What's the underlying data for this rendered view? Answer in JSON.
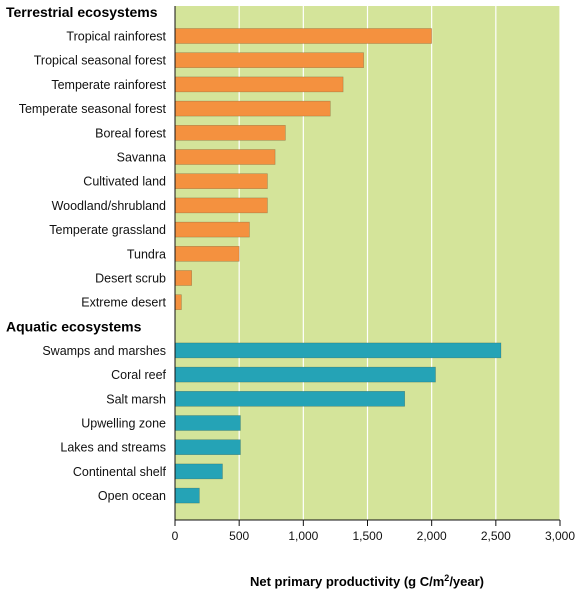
{
  "chart_data": {
    "type": "bar",
    "orientation": "horizontal",
    "xlabel": "Net primary productivity (g C/m²/year)",
    "xlim": [
      0,
      3000
    ],
    "xticks": [
      0,
      500,
      1000,
      1500,
      2000,
      2500,
      3000
    ],
    "xtick_labels": [
      "0",
      "500",
      "1,000",
      "1,500",
      "2,000",
      "2,500",
      "3,000"
    ],
    "grid": "vertical",
    "background_color": "#d4e49a",
    "groups": [
      {
        "name": "Terrestrial ecosystems",
        "color": "#f4913f",
        "categories": [
          "Tropical rainforest",
          "Tropical seasonal forest",
          "Temperate rainforest",
          "Temperate seasonal forest",
          "Boreal forest",
          "Savanna",
          "Cultivated land",
          "Woodland/shrubland",
          "Temperate grassland",
          "Tundra",
          "Desert scrub",
          "Extreme desert"
        ],
        "values": [
          2000,
          1470,
          1310,
          1210,
          860,
          780,
          720,
          720,
          580,
          500,
          130,
          50
        ]
      },
      {
        "name": "Aquatic ecosystems",
        "color": "#25a3b6",
        "categories": [
          "Swamps and marshes",
          "Coral reef",
          "Salt marsh",
          "Upwelling zone",
          "Lakes and streams",
          "Continental shelf",
          "Open ocean"
        ],
        "values": [
          2540,
          2030,
          1790,
          510,
          510,
          370,
          190
        ]
      }
    ]
  }
}
